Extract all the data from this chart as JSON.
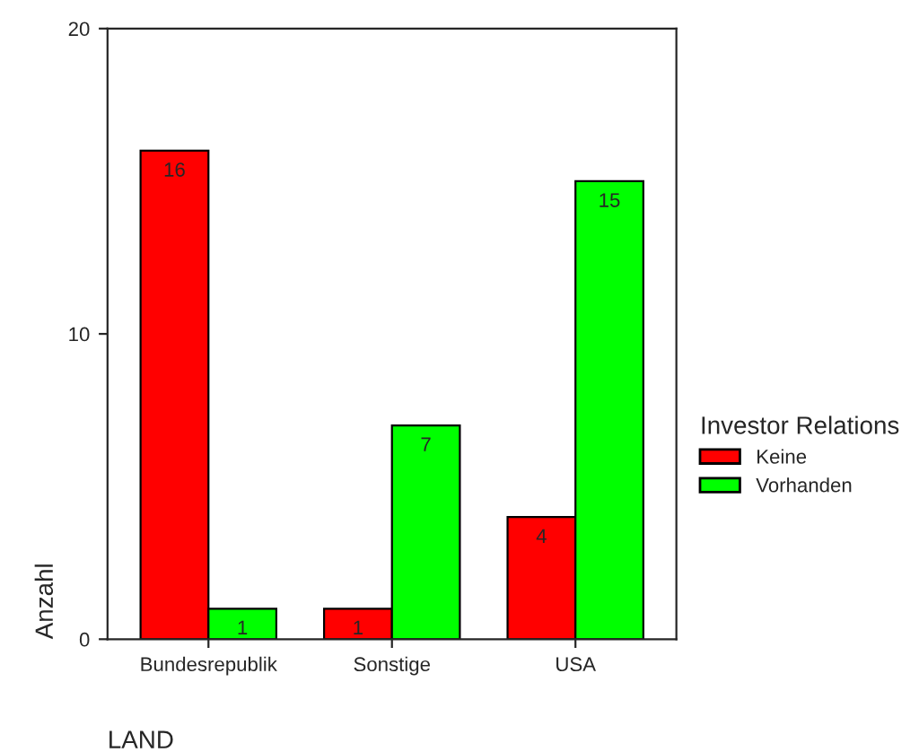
{
  "chart_data": {
    "type": "bar",
    "xlabel": "LAND",
    "ylabel": "Anzahl",
    "legend_title": "Investor Relations",
    "categories": [
      "Bundesrepublik",
      "Sonstige",
      "USA"
    ],
    "series": [
      {
        "name": "Keine",
        "color": "#ff0000",
        "values": [
          16,
          1,
          4
        ]
      },
      {
        "name": "Vorhanden",
        "color": "#00ff00",
        "values": [
          1,
          7,
          15
        ]
      }
    ],
    "ylim": [
      0,
      20
    ],
    "yticks": [
      0,
      10,
      20
    ],
    "grid": false,
    "legend": "right",
    "data_labels": true
  }
}
